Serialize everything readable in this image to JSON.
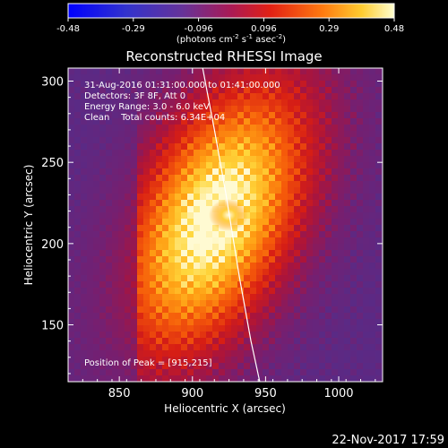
{
  "chart_data": {
    "type": "heatmap",
    "title": "Reconstructed RHESSI Image",
    "xlabel": "Heliocentric X (arcsec)",
    "ylabel": "Heliocentric Y (arcsec)",
    "xlim": [
      815,
      1030
    ],
    "ylim": [
      115,
      308
    ],
    "xticks": [
      850,
      900,
      950,
      1000
    ],
    "yticks": [
      150,
      200,
      250,
      300
    ],
    "colorbar": {
      "range": [
        -0.48,
        0.48
      ],
      "ticks": [
        "-0.48",
        "-0.29",
        "-0.096",
        "0.096",
        "0.29",
        "0.48"
      ],
      "unit_prefix": "(photons cm",
      "unit_exp1": "-2",
      "unit_mid": " s",
      "unit_exp2": "-1",
      "unit_mid2": " asec",
      "unit_exp3": "-2",
      "unit_suffix": ")"
    },
    "annotations": {
      "time_range": "31-Aug-2016 01:31:00.000 to 01:41:00.000",
      "detectors": "Detectors: 3F 8F, Att 0",
      "energy": "Energy Range: 3.0 - 6.0 keV",
      "clean": "Clean    Total counts: 6.34E+04",
      "peak": "Position of Peak = [915,215]"
    },
    "peak": [
      915,
      215
    ],
    "limb_curve": [
      [
        907,
        308
      ],
      [
        915,
        270
      ],
      [
        923,
        230
      ],
      [
        932,
        180
      ],
      [
        940,
        140
      ],
      [
        946,
        115
      ]
    ],
    "footer": "22-Nov-2017 17:59"
  }
}
